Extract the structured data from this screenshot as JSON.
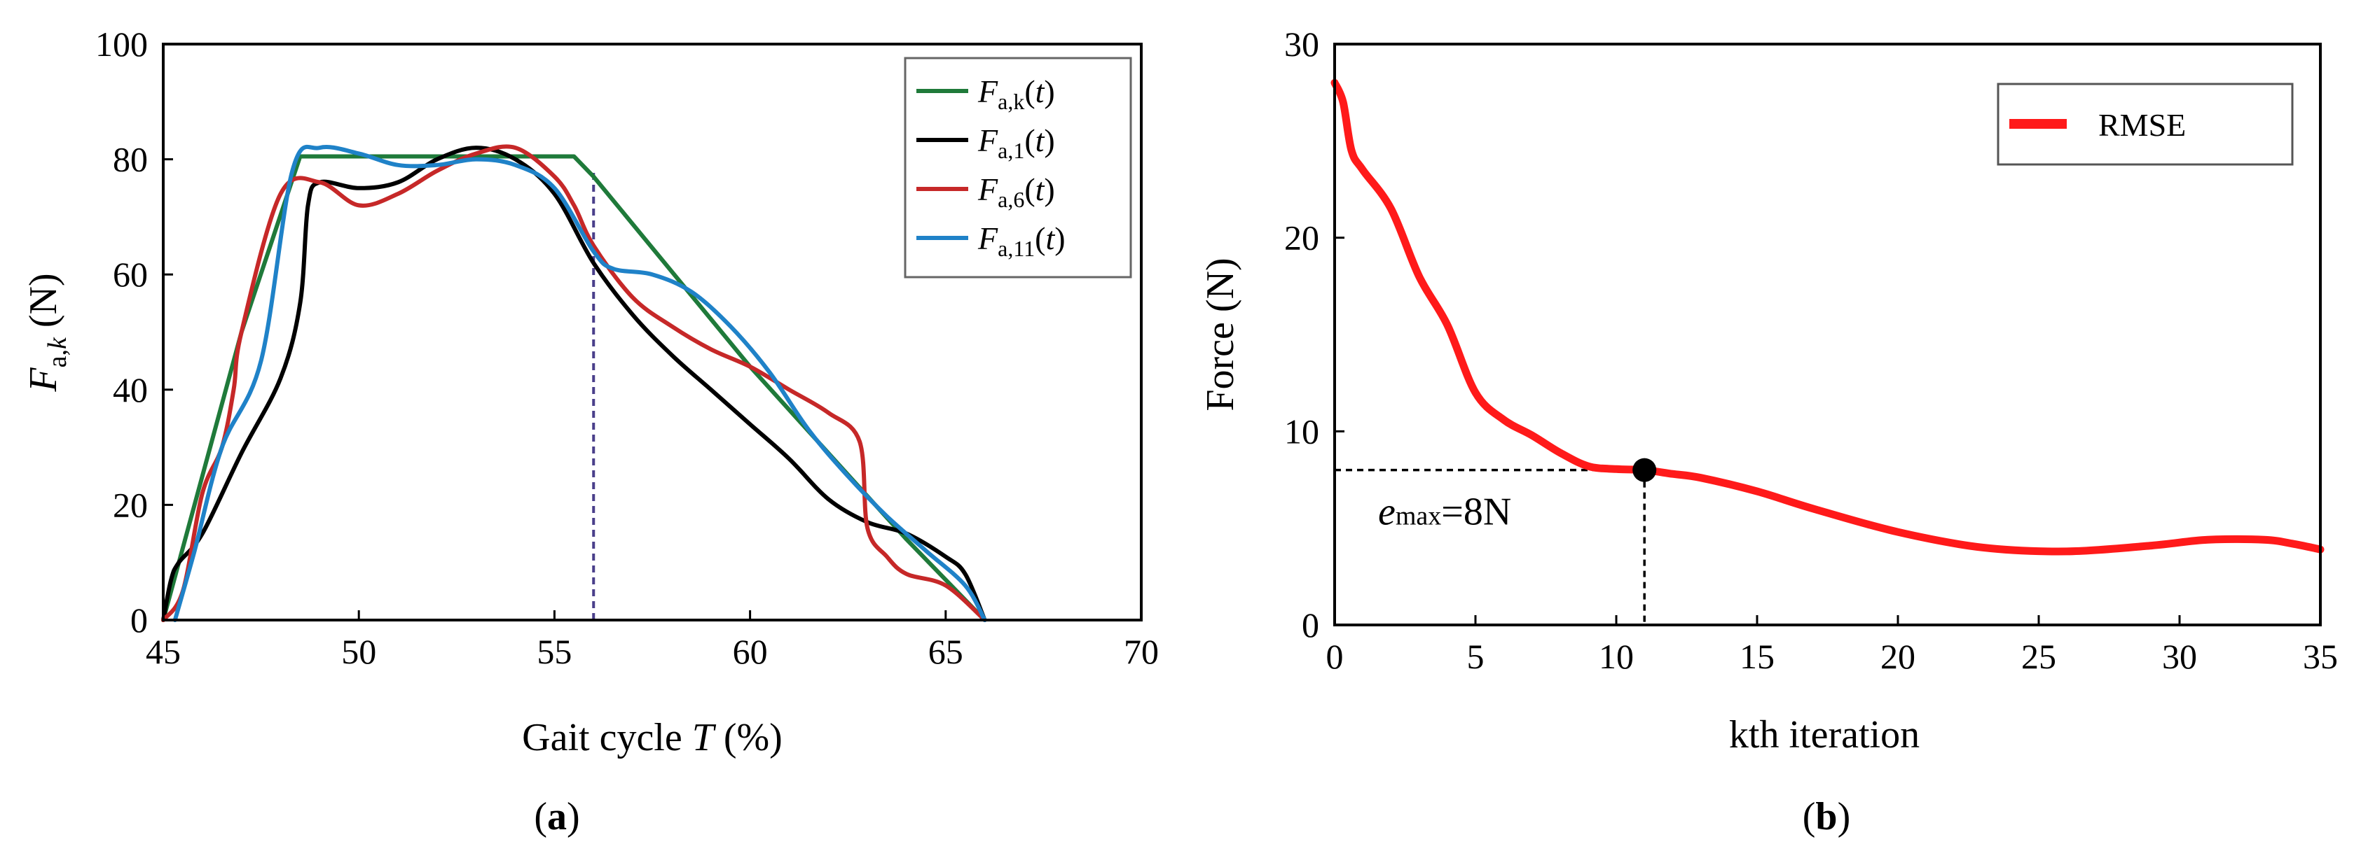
{
  "chart_data": [
    {
      "type": "line",
      "panel_label": "a",
      "xlabel": "Gait cycle T (%)",
      "ylabel": "F_a,k (N)",
      "xlim": [
        45,
        70
      ],
      "ylim": [
        0,
        100
      ],
      "xticks": [
        45,
        50,
        55,
        60,
        65,
        70
      ],
      "yticks": [
        0,
        20,
        40,
        60,
        80,
        100
      ],
      "grid": false,
      "legend_position": "top-right",
      "annotations": [
        {
          "type": "vertical-dashed-line",
          "x": 56,
          "y_from": 0,
          "y_to": 78
        }
      ],
      "series": [
        {
          "name": "F_a,k(t)",
          "color": "#1f7a3a",
          "x": [
            45,
            46,
            47,
            48.5,
            55.5,
            56,
            60,
            64,
            66
          ],
          "y": [
            0,
            25,
            50,
            80.5,
            80.5,
            77,
            44,
            14,
            0
          ]
        },
        {
          "name": "F_a,1(t)",
          "color": "#000000",
          "x": [
            45,
            45.2,
            45.4,
            46,
            47,
            48,
            48.5,
            48.7,
            49,
            50,
            51,
            52,
            53,
            54,
            55,
            56,
            57,
            58,
            59,
            60,
            61,
            62,
            63,
            64,
            65,
            65.5,
            66
          ],
          "y": [
            0,
            7,
            10,
            15,
            29,
            42,
            55,
            72,
            76,
            75,
            76,
            80,
            82,
            80,
            74,
            62,
            53,
            46,
            40,
            34,
            28,
            21,
            17,
            15,
            11,
            8,
            0
          ]
        },
        {
          "name": "F_a,6(t)",
          "color": "#c62828",
          "x": [
            45,
            45.5,
            46,
            46.5,
            46.8,
            47,
            48,
            49,
            50,
            51,
            52,
            53,
            54,
            55,
            55.5,
            56,
            57,
            58,
            59,
            60,
            61,
            62,
            62.8,
            63,
            63.5,
            64,
            65,
            66
          ],
          "y": [
            0,
            5,
            22,
            30,
            40,
            50,
            74,
            76,
            72,
            74,
            78,
            81,
            82,
            77,
            72,
            65,
            56,
            51,
            47,
            44,
            40,
            36,
            31,
            16,
            11,
            8,
            6,
            0
          ]
        },
        {
          "name": "F_a,11(t)",
          "color": "#1f82c8",
          "x": [
            45.3,
            45.8,
            46.5,
            47.5,
            48.3,
            49,
            50,
            51,
            52,
            53,
            54,
            55,
            56,
            56.5,
            57.5,
            58.5,
            59.5,
            60.5,
            61.5,
            62.5,
            63.5,
            64.5,
            65.5,
            66
          ],
          "y": [
            0,
            12,
            30,
            45,
            78,
            82,
            81,
            79,
            79,
            80,
            79,
            75,
            64,
            61,
            60,
            57,
            51,
            43,
            33,
            25,
            18,
            12,
            6,
            0
          ]
        }
      ]
    },
    {
      "type": "line",
      "panel_label": "b",
      "xlabel": "kth iteration",
      "ylabel": "Force (N)",
      "xlim": [
        0,
        35
      ],
      "ylim": [
        0,
        30
      ],
      "xticks": [
        0,
        5,
        10,
        15,
        20,
        25,
        30,
        35
      ],
      "yticks": [
        0,
        10,
        20,
        30
      ],
      "grid": false,
      "legend_position": "top-right",
      "annotations": [
        {
          "type": "marker",
          "x": 11,
          "y": 8,
          "text_prefix": "e",
          "text_sub": "max",
          "text_suffix": "=8N"
        }
      ],
      "series": [
        {
          "name": "RMSE",
          "color": "#ff1a1a",
          "x": [
            0,
            0.3,
            0.6,
            1,
            2,
            3,
            4,
            5,
            6,
            7,
            8,
            9,
            10,
            11,
            12,
            13,
            15,
            17,
            20,
            23,
            26,
            29,
            31,
            33,
            34,
            35
          ],
          "y": [
            28,
            27,
            24.5,
            23.5,
            21.5,
            18,
            15.5,
            12,
            10.6,
            9.8,
            8.9,
            8.2,
            8.05,
            8,
            7.8,
            7.6,
            6.9,
            6,
            4.8,
            4,
            3.8,
            4.1,
            4.4,
            4.4,
            4.2,
            3.9
          ]
        }
      ]
    }
  ]
}
